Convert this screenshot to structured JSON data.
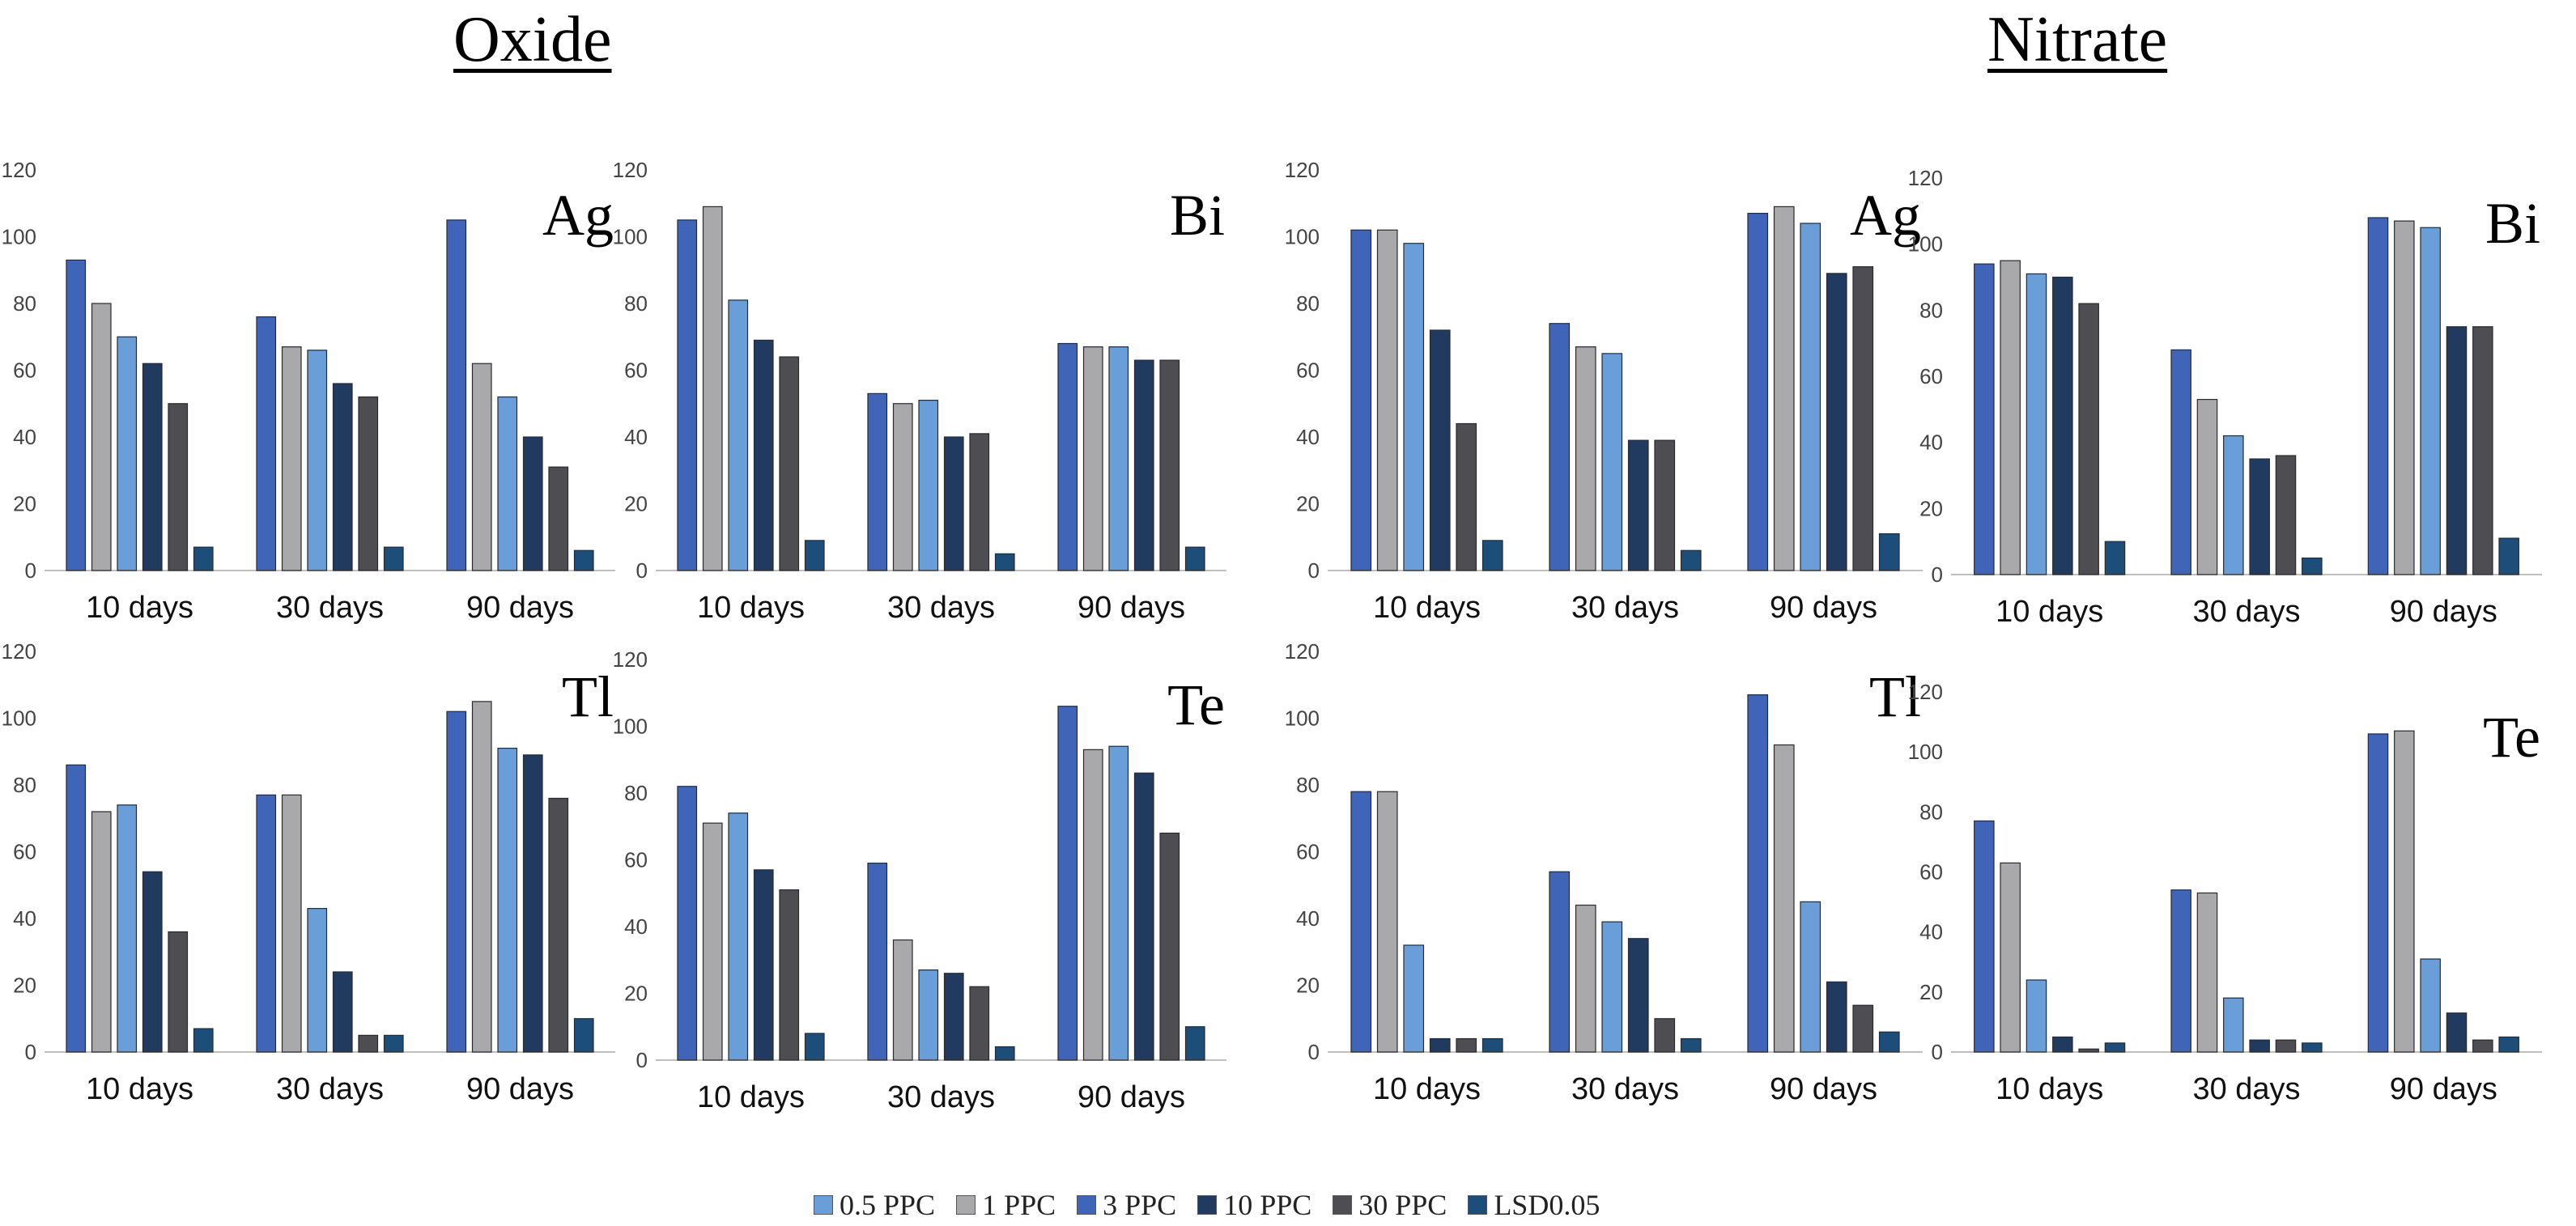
{
  "section_titles": {
    "oxide": "Oxide",
    "nitrate": "Nitrate"
  },
  "legend": [
    {
      "label": "0.5 PPC",
      "color": "#6A9ED8"
    },
    {
      "label": "1 PPC",
      "color": "#A9A9AC"
    },
    {
      "label": "3 PPC",
      "color": "#3F64B8"
    },
    {
      "label": "10 PPC",
      "color": "#213A60"
    },
    {
      "label": "30 PPC",
      "color": "#4E4E52"
    },
    {
      "label": "LSD0.05",
      "color": "#1D4E7A"
    }
  ],
  "chart_data": [
    {
      "type": "bar",
      "group": "Oxide",
      "title": "Ag",
      "categories": [
        "10 days",
        "30 days",
        "90 days"
      ],
      "ylim": [
        0,
        120
      ],
      "yticks": [
        "0",
        "20",
        "40",
        "60",
        "80",
        "100",
        "120"
      ],
      "series": [
        {
          "name": "3 PPC",
          "values": [
            93,
            76,
            105
          ]
        },
        {
          "name": "1 PPC",
          "values": [
            80,
            67,
            62
          ]
        },
        {
          "name": "0.5 PPC",
          "values": [
            70,
            66,
            52
          ]
        },
        {
          "name": "10 PPC",
          "values": [
            62,
            56,
            40
          ]
        },
        {
          "name": "30 PPC",
          "values": [
            50,
            52,
            31
          ]
        },
        {
          "name": "LSD0.05",
          "values": [
            7,
            7,
            6
          ]
        }
      ]
    },
    {
      "type": "bar",
      "group": "Oxide",
      "title": "Bi",
      "categories": [
        "10 days",
        "30 days",
        "90 days"
      ],
      "ylim": [
        0,
        120
      ],
      "yticks": [
        "0",
        "20",
        "40",
        "60",
        "80",
        "100",
        "120"
      ],
      "series": [
        {
          "name": "3 PPC",
          "values": [
            105,
            53,
            68
          ]
        },
        {
          "name": "1 PPC",
          "values": [
            109,
            50,
            67
          ]
        },
        {
          "name": "0.5 PPC",
          "values": [
            81,
            51,
            67
          ]
        },
        {
          "name": "10 PPC",
          "values": [
            69,
            40,
            63
          ]
        },
        {
          "name": "30 PPC",
          "values": [
            64,
            41,
            63
          ]
        },
        {
          "name": "LSD0.05",
          "values": [
            9,
            5,
            7
          ]
        }
      ]
    },
    {
      "type": "bar",
      "group": "Nitrate",
      "title": "Ag",
      "categories": [
        "10 days",
        "30 days",
        "90 days"
      ],
      "ylim": [
        0,
        120
      ],
      "yticks": [
        "0",
        "20",
        "40",
        "60",
        "80",
        "100",
        "120"
      ],
      "series": [
        {
          "name": "3 PPC",
          "values": [
            102,
            74,
            107
          ]
        },
        {
          "name": "1 PPC",
          "values": [
            102,
            67,
            109
          ]
        },
        {
          "name": "0.5 PPC",
          "values": [
            98,
            65,
            104
          ]
        },
        {
          "name": "10 PPC",
          "values": [
            72,
            39,
            89
          ]
        },
        {
          "name": "30 PPC",
          "values": [
            44,
            39,
            91
          ]
        },
        {
          "name": "LSD0.05",
          "values": [
            9,
            6,
            11
          ]
        }
      ]
    },
    {
      "type": "bar",
      "group": "Nitrate",
      "title": "Bi",
      "categories": [
        "10 days",
        "30 days",
        "90 days"
      ],
      "ylim": [
        0,
        120
      ],
      "yticks": [
        "0",
        "20",
        "40",
        "60",
        "80",
        "100",
        "120"
      ],
      "series": [
        {
          "name": "3 PPC",
          "values": [
            94,
            68,
            108
          ]
        },
        {
          "name": "1 PPC",
          "values": [
            95,
            53,
            107
          ]
        },
        {
          "name": "0.5 PPC",
          "values": [
            91,
            42,
            105
          ]
        },
        {
          "name": "10 PPC",
          "values": [
            90,
            35,
            75
          ]
        },
        {
          "name": "30 PPC",
          "values": [
            82,
            36,
            75
          ]
        },
        {
          "name": "LSD0.05",
          "values": [
            10,
            5,
            11
          ]
        }
      ]
    },
    {
      "type": "bar",
      "group": "Oxide",
      "title": "Tl",
      "categories": [
        "10 days",
        "30 days",
        "90 days"
      ],
      "ylim": [
        0,
        120
      ],
      "yticks": [
        "0",
        "20",
        "40",
        "60",
        "80",
        "100",
        "120"
      ],
      "series": [
        {
          "name": "3 PPC",
          "values": [
            86,
            77,
            102
          ]
        },
        {
          "name": "1 PPC",
          "values": [
            72,
            77,
            105
          ]
        },
        {
          "name": "0.5 PPC",
          "values": [
            74,
            43,
            91
          ]
        },
        {
          "name": "10 PPC",
          "values": [
            54,
            24,
            89
          ]
        },
        {
          "name": "30 PPC",
          "values": [
            36,
            5,
            76
          ]
        },
        {
          "name": "LSD0.05",
          "values": [
            7,
            5,
            10
          ]
        }
      ]
    },
    {
      "type": "bar",
      "group": "Oxide",
      "title": "Te",
      "categories": [
        "10 days",
        "30 days",
        "90 days"
      ],
      "ylim": [
        0,
        120
      ],
      "yticks": [
        "0",
        "20",
        "40",
        "60",
        "80",
        "100",
        "120"
      ],
      "series": [
        {
          "name": "3 PPC",
          "values": [
            82,
            59,
            106
          ]
        },
        {
          "name": "1 PPC",
          "values": [
            71,
            36,
            93
          ]
        },
        {
          "name": "0.5 PPC",
          "values": [
            74,
            27,
            94
          ]
        },
        {
          "name": "10 PPC",
          "values": [
            57,
            26,
            86
          ]
        },
        {
          "name": "30 PPC",
          "values": [
            51,
            22,
            68
          ]
        },
        {
          "name": "LSD0.05",
          "values": [
            8,
            4,
            10
          ]
        }
      ]
    },
    {
      "type": "bar",
      "group": "Nitrate",
      "title": "Tl",
      "categories": [
        "10 days",
        "30 days",
        "90 days"
      ],
      "ylim": [
        0,
        120
      ],
      "yticks": [
        "0",
        "20",
        "40",
        "60",
        "80",
        "100",
        "120"
      ],
      "series": [
        {
          "name": "3 PPC",
          "values": [
            78,
            54,
            107
          ]
        },
        {
          "name": "1 PPC",
          "values": [
            78,
            44,
            92
          ]
        },
        {
          "name": "0.5 PPC",
          "values": [
            32,
            39,
            45
          ]
        },
        {
          "name": "10 PPC",
          "values": [
            4,
            34,
            21
          ]
        },
        {
          "name": "30 PPC",
          "values": [
            4,
            10,
            14
          ]
        },
        {
          "name": "LSD0.05",
          "values": [
            4,
            4,
            6
          ]
        }
      ]
    },
    {
      "type": "bar",
      "group": "Nitrate",
      "title": "Te",
      "categories": [
        "10 days",
        "30 days",
        "90 days"
      ],
      "ylim": [
        0,
        120
      ],
      "yticks": [
        "0",
        "20",
        "40",
        "60",
        "80",
        "100",
        "120"
      ],
      "series": [
        {
          "name": "3 PPC",
          "values": [
            77,
            54,
            106
          ]
        },
        {
          "name": "1 PPC",
          "values": [
            63,
            53,
            107
          ]
        },
        {
          "name": "0.5 PPC",
          "values": [
            24,
            18,
            31
          ]
        },
        {
          "name": "10 PPC",
          "values": [
            5,
            4,
            13
          ]
        },
        {
          "name": "30 PPC",
          "values": [
            1,
            4,
            4
          ]
        },
        {
          "name": "LSD0.05",
          "values": [
            3,
            3,
            5
          ]
        }
      ]
    }
  ]
}
